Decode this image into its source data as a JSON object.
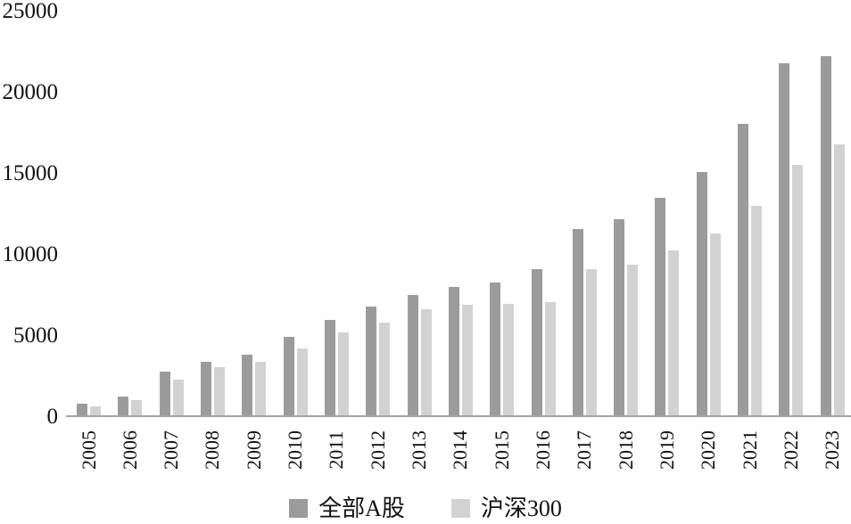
{
  "chart_data": {
    "type": "bar",
    "title": "",
    "xlabel": "",
    "ylabel": "",
    "categories": [
      "2005",
      "2006",
      "2007",
      "2008",
      "2009",
      "2010",
      "2011",
      "2012",
      "2013",
      "2014",
      "2015",
      "2016",
      "2017",
      "2018",
      "2019",
      "2020",
      "2021",
      "2022",
      "2023"
    ],
    "series": [
      {
        "name": "全部A股",
        "color": "#9b9b9b",
        "values": [
          800,
          1250,
          2800,
          3400,
          3850,
          4950,
          6000,
          6800,
          7550,
          8000,
          8300,
          9100,
          11600,
          12200,
          13500,
          15100,
          18100,
          21800,
          22250
        ]
      },
      {
        "name": "沪深300",
        "color": "#d2d2d2",
        "values": [
          650,
          1050,
          2300,
          3100,
          3400,
          4250,
          5200,
          5800,
          6650,
          6900,
          7000,
          7100,
          9100,
          9400,
          10300,
          11300,
          13000,
          15550,
          16800
        ]
      }
    ],
    "ylim": [
      0,
      25000
    ],
    "yticks": [
      "0",
      "5000",
      "10000",
      "15000",
      "20000",
      "25000"
    ],
    "grid": false,
    "legend_position": "bottom",
    "axis_color": "#a3a3a3",
    "text_color": "#111111"
  }
}
